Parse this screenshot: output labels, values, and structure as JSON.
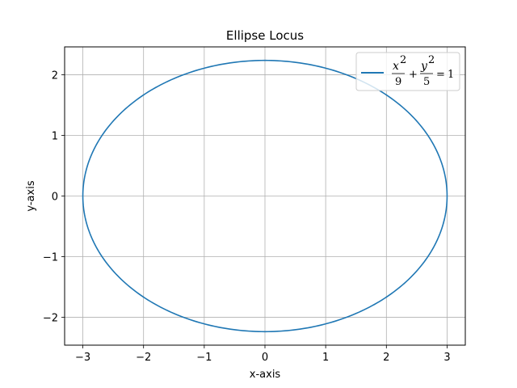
{
  "chart_data": {
    "type": "line",
    "title": "Ellipse Locus",
    "xlabel": "x-axis",
    "ylabel": "y-axis",
    "xlim": [
      -3.3,
      3.3
    ],
    "ylim": [
      -2.459,
      2.459
    ],
    "xticks": [
      -3,
      -2,
      -1,
      0,
      1,
      2,
      3
    ],
    "xtick_labels": [
      "−3",
      "−2",
      "−1",
      "0",
      "1",
      "2",
      "3"
    ],
    "yticks": [
      -2,
      -1,
      0,
      1,
      2
    ],
    "ytick_labels": [
      "−2",
      "−1",
      "0",
      "1",
      "2"
    ],
    "grid": true,
    "legend_position": "top-right",
    "series": [
      {
        "name": "x²/9 + y²/5 = 1",
        "color": "#1f77b4",
        "equation": {
          "a": 3,
          "b": 2.236
        }
      }
    ],
    "legend": {
      "x_var": "x",
      "y_var": "y",
      "exp": "2",
      "x_den": "9",
      "y_den": "5",
      "plus": "+",
      "equals": "=",
      "rhs": "1"
    }
  }
}
